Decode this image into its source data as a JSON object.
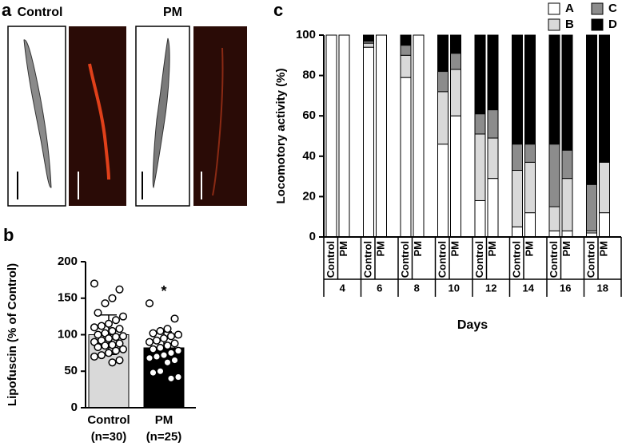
{
  "panel_labels": [
    "a",
    "b",
    "c"
  ],
  "images": {
    "labels": [
      "Control",
      "PM"
    ]
  },
  "chart_data": [
    {
      "type": "bar",
      "ylabel": "Lipofuscin (% of Control)",
      "categories": [
        "Control",
        "PM"
      ],
      "category_notes": [
        "(n=30)",
        "(n=25)"
      ],
      "values": [
        100,
        82
      ],
      "errors": [
        27,
        22
      ],
      "colors": [
        "#d9d9d9",
        "#000000"
      ],
      "points": [
        [
          170,
          162,
          150,
          143,
          130,
          125,
          120,
          115,
          112,
          110,
          108,
          105,
          102,
          100,
          98,
          97,
          95,
          92,
          90,
          88,
          86,
          85,
          83,
          80,
          78,
          75,
          72,
          70,
          65,
          62
        ],
        [
          143,
          122,
          108,
          105,
          102,
          100,
          98,
          95,
          92,
          90,
          88,
          85,
          82,
          80,
          78,
          75,
          72,
          70,
          68,
          65,
          62,
          50,
          48,
          42,
          40
        ]
      ],
      "annotation": "*",
      "ylim": [
        0,
        200
      ],
      "yticks": [
        0,
        50,
        100,
        150,
        200
      ]
    },
    {
      "type": "stacked_bar",
      "ylabel": "Locomotory activity (%)",
      "xlabel": "Days",
      "categories": [
        "Control",
        "PM",
        "Control",
        "PM",
        "Control",
        "PM",
        "Control",
        "PM",
        "Control",
        "PM",
        "Control",
        "PM",
        "Control",
        "PM",
        "Control",
        "PM"
      ],
      "groups": [
        "4",
        "6",
        "8",
        "10",
        "12",
        "14",
        "16",
        "18"
      ],
      "series": [
        {
          "name": "A",
          "color": "#ffffff",
          "values": [
            100,
            100,
            94,
            100,
            79,
            100,
            46,
            60,
            18,
            29,
            5,
            12,
            3,
            3,
            2,
            12
          ]
        },
        {
          "name": "B",
          "color": "#d9d9d9",
          "values": [
            0,
            0,
            2,
            0,
            11,
            0,
            26,
            23,
            33,
            20,
            28,
            25,
            12,
            26,
            1,
            25
          ]
        },
        {
          "name": "C",
          "color": "#8c8c8c",
          "values": [
            0,
            0,
            1,
            0,
            5,
            0,
            10,
            8,
            10,
            14,
            13,
            9,
            31,
            14,
            23,
            0
          ]
        },
        {
          "name": "D",
          "color": "#000000",
          "values": [
            0,
            0,
            3,
            0,
            5,
            0,
            18,
            9,
            39,
            37,
            54,
            54,
            54,
            57,
            74,
            63
          ]
        }
      ],
      "ylim": [
        0,
        100
      ],
      "yticks": [
        0,
        20,
        40,
        60,
        80,
        100
      ]
    }
  ]
}
